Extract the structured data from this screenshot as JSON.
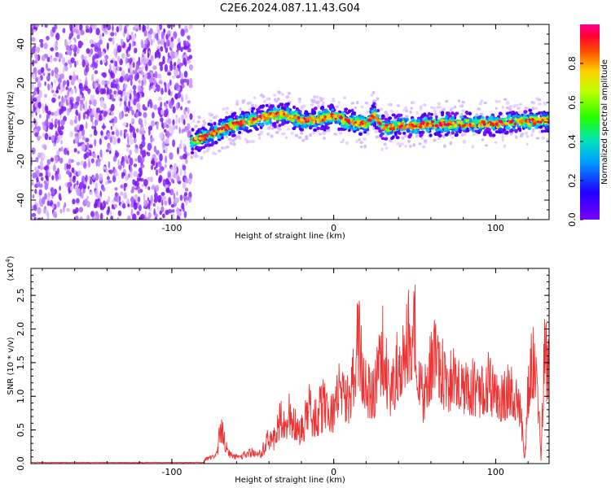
{
  "title": "C2E6.2024.087.11.43.G04",
  "chart_data": [
    {
      "type": "heatmap",
      "xlabel": "Height of straight line (km)",
      "ylabel": "Frequency (Hz)",
      "xlim": [
        -187,
        133
      ],
      "ylim": [
        -50,
        50
      ],
      "xticks": [
        -100,
        0,
        100
      ],
      "yticks": [
        -40,
        -20,
        0,
        20,
        40
      ],
      "colorbar": {
        "label": "Normalized spectral amplitude",
        "range": [
          0.0,
          1.0
        ],
        "ticks": [
          "0.0",
          "0.2",
          "0.4",
          "0.6",
          "0.8"
        ],
        "colormap": "rainbow (purple → blue → cyan → green → yellow → orange → red → magenta)"
      },
      "noise_region_x": [
        -187,
        -88
      ],
      "ridge": {
        "x": [
          -88,
          -80,
          -70,
          -60,
          -50,
          -40,
          -30,
          -20,
          -10,
          0,
          10,
          20,
          25,
          30,
          40,
          50,
          60,
          70,
          80,
          90,
          100,
          110,
          120,
          133
        ],
        "freq": [
          -10,
          -8,
          -4,
          -1,
          1,
          3,
          4,
          1,
          1,
          3,
          0,
          -1,
          4,
          -3,
          -2,
          -2,
          -1,
          -1,
          -1,
          -1,
          -1,
          0,
          0,
          1
        ]
      }
    },
    {
      "type": "line",
      "xlabel": "Height of straight line (km)",
      "ylabel": "SNR (10 * v/v)",
      "y_multiplier": "(x10^4)",
      "y_multiplier_base": "(x10",
      "y_multiplier_exp": "4",
      "y_multiplier_close": ")",
      "xlim": [
        -187,
        133
      ],
      "ylim": [
        0,
        2.9
      ],
      "xticks": [
        -100,
        0,
        100
      ],
      "yticks": [
        "0.0",
        "0.5",
        "1.0",
        "1.5",
        "2.0",
        "2.5"
      ],
      "series": [
        {
          "color": "#ee3333",
          "x": [
            -187,
            -150,
            -100,
            -85,
            -80,
            -75,
            -72,
            -70,
            -68,
            -66,
            -64,
            -62,
            -60,
            -58,
            -55,
            -50,
            -45,
            -40,
            -38,
            -35,
            -32,
            -30,
            -28,
            -25,
            -22,
            -20,
            -18,
            -15,
            -12,
            -10,
            -8,
            -5,
            -2,
            0,
            5,
            10,
            15,
            20,
            25,
            30,
            35,
            40,
            45,
            50,
            55,
            60,
            65,
            70,
            75,
            80,
            85,
            90,
            95,
            100,
            105,
            110,
            115,
            118,
            120,
            122,
            125,
            128,
            130,
            133
          ],
          "y": [
            0.01,
            0.01,
            0.02,
            0.03,
            0.08,
            0.15,
            0.2,
            0.9,
            0.55,
            0.3,
            0.2,
            0.15,
            0.2,
            0.15,
            0.2,
            0.25,
            0.2,
            0.6,
            0.4,
            0.8,
            1.0,
            0.7,
            1.1,
            0.9,
            0.8,
            0.7,
            0.9,
            1.2,
            1.0,
            1.1,
            1.2,
            1.4,
            1.0,
            1.3,
            1.6,
            1.3,
            2.6,
            1.5,
            1.5,
            2.4,
            1.4,
            2.1,
            2.6,
            2.9,
            1.3,
            2.1,
            2.2,
            1.5,
            2.0,
            1.6,
            1.6,
            1.5,
            1.7,
            1.4,
            1.4,
            1.6,
            1.2,
            0.1,
            1.5,
            2.1,
            2.2,
            0.1,
            2.3,
            1.8
          ]
        }
      ]
    }
  ]
}
